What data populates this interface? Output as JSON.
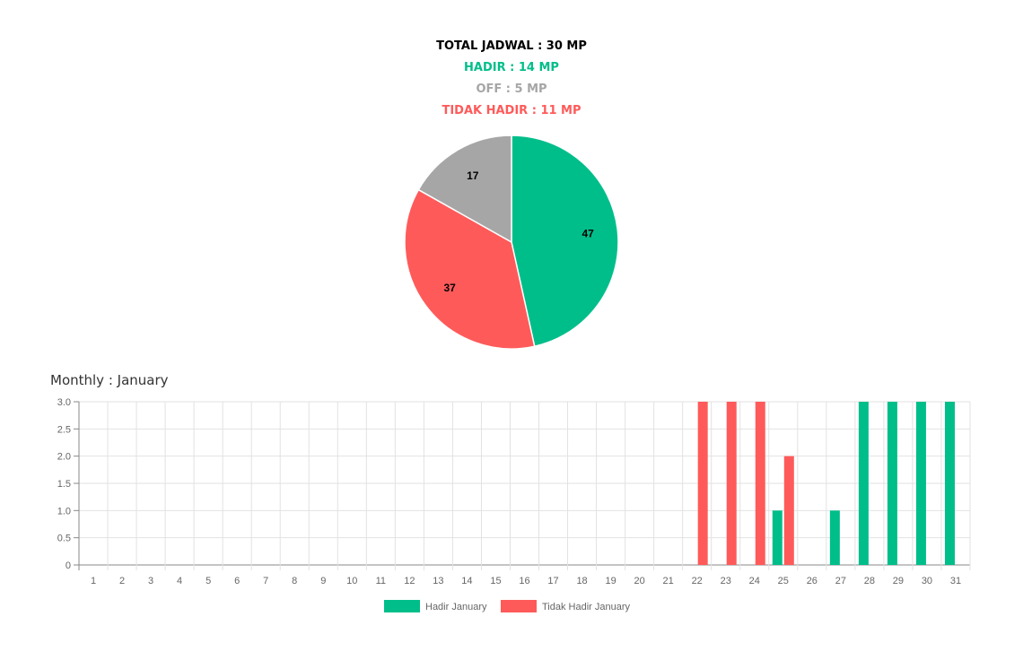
{
  "summary": {
    "total": "TOTAL JADWAL : 30 MP",
    "hadir": "HADIR : 14 MP",
    "off": "OFF : 5 MP",
    "tidak_hadir": "TIDAK HADIR : 11 MP"
  },
  "monthly_title": "Monthly : January",
  "colors": {
    "hadir": "#00be8a",
    "off": "#a6a6a6",
    "tidak_hadir": "#ff5a5a",
    "total": "#000000"
  },
  "chart_data": [
    {
      "type": "pie",
      "categories": [
        "Hadir",
        "Tidak Hadir",
        "Off"
      ],
      "values": [
        47,
        37,
        17
      ],
      "labels": [
        "47",
        "37",
        "17"
      ],
      "colors": [
        "#00be8a",
        "#ff5a5a",
        "#a6a6a6"
      ]
    },
    {
      "type": "bar",
      "title": "",
      "categories": [
        "1",
        "2",
        "3",
        "4",
        "5",
        "6",
        "7",
        "8",
        "9",
        "10",
        "11",
        "12",
        "13",
        "14",
        "15",
        "16",
        "17",
        "18",
        "19",
        "20",
        "21",
        "22",
        "23",
        "24",
        "25",
        "26",
        "27",
        "28",
        "29",
        "30",
        "31"
      ],
      "series": [
        {
          "name": "Hadir January",
          "color": "#00be8a",
          "values": [
            0,
            0,
            0,
            0,
            0,
            0,
            0,
            0,
            0,
            0,
            0,
            0,
            0,
            0,
            0,
            0,
            0,
            0,
            0,
            0,
            0,
            0,
            0,
            0,
            1,
            0,
            1,
            3,
            3,
            3,
            3
          ]
        },
        {
          "name": "Tidak Hadir January",
          "color": "#ff5a5a",
          "values": [
            0,
            0,
            0,
            0,
            0,
            0,
            0,
            0,
            0,
            0,
            0,
            0,
            0,
            0,
            0,
            0,
            0,
            0,
            0,
            0,
            0,
            3,
            3,
            3,
            2,
            0,
            0,
            0,
            0,
            0,
            0
          ]
        }
      ],
      "ylim": [
        0,
        3
      ],
      "yticks": [
        "3.0",
        "2.5",
        "2.0",
        "1.5",
        "1.0",
        "0.5",
        "0"
      ],
      "ytick_values": [
        3,
        2.5,
        2,
        1.5,
        1,
        0.5,
        0
      ],
      "grid": true,
      "legend": "bottom"
    }
  ]
}
